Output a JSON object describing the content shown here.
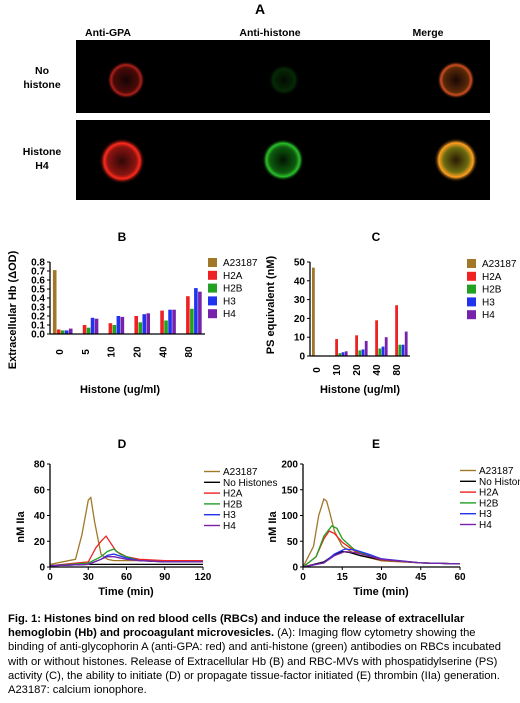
{
  "panelA": {
    "letter": "A",
    "col_headers": [
      "Anti-GPA",
      "Anti-histone",
      "Merge"
    ],
    "row1_label": [
      "No",
      "histone"
    ],
    "row2_label": [
      "Histone",
      "H4"
    ]
  },
  "legend_bc": [
    "A23187",
    "H2A",
    "H2B",
    "H3",
    "H4"
  ],
  "legend_de": [
    "A23187",
    "No Histones",
    "H2A",
    "H2B",
    "H3",
    "H4"
  ],
  "colors": {
    "A23187": "#a07828",
    "H2A": "#ee2222",
    "H2B": "#22a022",
    "H3": "#2233ee",
    "H4": "#7722aa",
    "No Histones": "#000000"
  },
  "chart_data": [
    {
      "panel": "B",
      "type": "bar",
      "title": "B",
      "xlabel": "Histone (ug/ml)",
      "ylabel": "Extracellular Hb (ΔOD)",
      "categories": [
        "0",
        "5",
        "10",
        "20",
        "40",
        "80"
      ],
      "ylim": [
        0,
        0.8
      ],
      "yticks": [
        "0.0",
        "0.1",
        "0.2",
        "0.3",
        "0.4",
        "0.5",
        "0.6",
        "0.7",
        "0.8"
      ],
      "series": [
        {
          "name": "A23187",
          "values": [
            0.71,
            null,
            null,
            null,
            null,
            null
          ]
        },
        {
          "name": "H2A",
          "values": [
            0.05,
            0.1,
            0.12,
            0.2,
            0.26,
            0.42
          ]
        },
        {
          "name": "H2B",
          "values": [
            0.04,
            0.07,
            0.1,
            0.13,
            0.15,
            0.28
          ]
        },
        {
          "name": "H3",
          "values": [
            0.04,
            0.18,
            0.2,
            0.22,
            0.27,
            0.51
          ]
        },
        {
          "name": "H4",
          "values": [
            0.06,
            0.17,
            0.19,
            0.23,
            0.27,
            0.47
          ]
        }
      ]
    },
    {
      "panel": "C",
      "type": "bar",
      "title": "C",
      "xlabel": "Histone (ug/ml)",
      "ylabel": "PS equivalent (nM)",
      "categories": [
        "0",
        "10",
        "20",
        "40",
        "80"
      ],
      "ylim": [
        0,
        50
      ],
      "yticks": [
        "0",
        "10",
        "20",
        "30",
        "40",
        "50"
      ],
      "series": [
        {
          "name": "A23187",
          "values": [
            47,
            null,
            null,
            null,
            null
          ]
        },
        {
          "name": "H2A",
          "values": [
            0.3,
            9,
            11,
            19,
            27
          ]
        },
        {
          "name": "H2B",
          "values": [
            0.2,
            1.5,
            3,
            4,
            6
          ]
        },
        {
          "name": "H3",
          "values": [
            0.2,
            2,
            3.5,
            5,
            6
          ]
        },
        {
          "name": "H4",
          "values": [
            0.2,
            2.5,
            8,
            10,
            13
          ]
        }
      ]
    },
    {
      "panel": "D",
      "type": "line",
      "title": "D",
      "xlabel": "Time (min)",
      "ylabel": "nM IIa",
      "xlim": [
        0,
        120
      ],
      "ylim": [
        0,
        80
      ],
      "xticks": [
        "0",
        "30",
        "60",
        "90",
        "120"
      ],
      "yticks": [
        "0",
        "20",
        "40",
        "60",
        "80"
      ],
      "series": [
        {
          "name": "A23187",
          "x": [
            0,
            20,
            25,
            30,
            32,
            35,
            40,
            45,
            50,
            60,
            90,
            120
          ],
          "y": [
            2,
            6,
            25,
            52,
            54,
            35,
            10,
            6,
            5,
            5,
            5,
            5
          ]
        },
        {
          "name": "No Histones",
          "x": [
            0,
            30,
            60,
            90,
            120
          ],
          "y": [
            1,
            2,
            2,
            2,
            2
          ]
        },
        {
          "name": "H2A",
          "x": [
            0,
            30,
            36,
            40,
            44,
            48,
            52,
            60,
            70,
            90,
            120
          ],
          "y": [
            1,
            4,
            15,
            20,
            24,
            18,
            12,
            8,
            6,
            5,
            5
          ]
        },
        {
          "name": "H2B",
          "x": [
            0,
            30,
            40,
            45,
            50,
            55,
            60,
            70,
            90,
            120
          ],
          "y": [
            1,
            3,
            8,
            12,
            14,
            10,
            8,
            5,
            4,
            4
          ]
        },
        {
          "name": "H3",
          "x": [
            0,
            30,
            40,
            45,
            50,
            60,
            70,
            90,
            120
          ],
          "y": [
            1,
            2,
            6,
            9,
            10,
            7,
            5,
            4,
            4
          ]
        },
        {
          "name": "H4",
          "x": [
            0,
            30,
            40,
            45,
            50,
            60,
            70,
            90,
            120
          ],
          "y": [
            1,
            2,
            6,
            8,
            8,
            6,
            5,
            4,
            4
          ]
        }
      ]
    },
    {
      "panel": "E",
      "type": "line",
      "title": "E",
      "xlabel": "Time (min)",
      "ylabel": "nM IIa",
      "xlim": [
        0,
        60
      ],
      "ylim": [
        0,
        200
      ],
      "xticks": [
        "0",
        "15",
        "30",
        "45",
        "60"
      ],
      "yticks": [
        "0",
        "50",
        "100",
        "150",
        "200"
      ],
      "series": [
        {
          "name": "A23187",
          "x": [
            0,
            4,
            6,
            8,
            9,
            10,
            12,
            15,
            20,
            30,
            45,
            60
          ],
          "y": [
            0,
            40,
            100,
            132,
            128,
            110,
            70,
            40,
            25,
            12,
            8,
            6
          ]
        },
        {
          "name": "No Histones",
          "x": [
            0,
            8,
            12,
            15,
            18,
            22,
            30,
            45,
            60
          ],
          "y": [
            0,
            10,
            24,
            30,
            28,
            22,
            14,
            8,
            6
          ]
        },
        {
          "name": "H2A",
          "x": [
            0,
            5,
            8,
            10,
            12,
            15,
            20,
            30,
            45,
            60
          ],
          "y": [
            0,
            20,
            55,
            70,
            65,
            48,
            30,
            14,
            8,
            6
          ]
        },
        {
          "name": "H2B",
          "x": [
            0,
            5,
            8,
            11,
            13,
            15,
            20,
            30,
            45,
            60
          ],
          "y": [
            0,
            20,
            60,
            80,
            75,
            55,
            32,
            15,
            8,
            6
          ]
        },
        {
          "name": "H3",
          "x": [
            0,
            8,
            12,
            16,
            20,
            25,
            30,
            45,
            60
          ],
          "y": [
            0,
            8,
            25,
            35,
            33,
            25,
            16,
            8,
            6
          ]
        },
        {
          "name": "H4",
          "x": [
            0,
            8,
            12,
            16,
            20,
            25,
            30,
            45,
            60
          ],
          "y": [
            0,
            8,
            22,
            30,
            28,
            22,
            15,
            8,
            6
          ]
        }
      ]
    }
  ],
  "caption": {
    "bold": "Fig. 1: Histones bind on red blood cells (RBCs) and induce the release of extracellular hemoglobin (Hb) and procoagulant microvesicles.",
    "body": " (A): Imaging flow cytometry showing the binding of anti-glycophorin A (anti-GPA: red) and anti-histone (green) antibodies on RBCs incubated with or without histones. Release of Extracellular Hb (B) and RBC-MVs with phospatidylserine (PS) activity (C), the ability to initiate (D) or propagate tissue-factor initiated (E) thrombin (IIa) generation. A23187: calcium ionophore."
  }
}
